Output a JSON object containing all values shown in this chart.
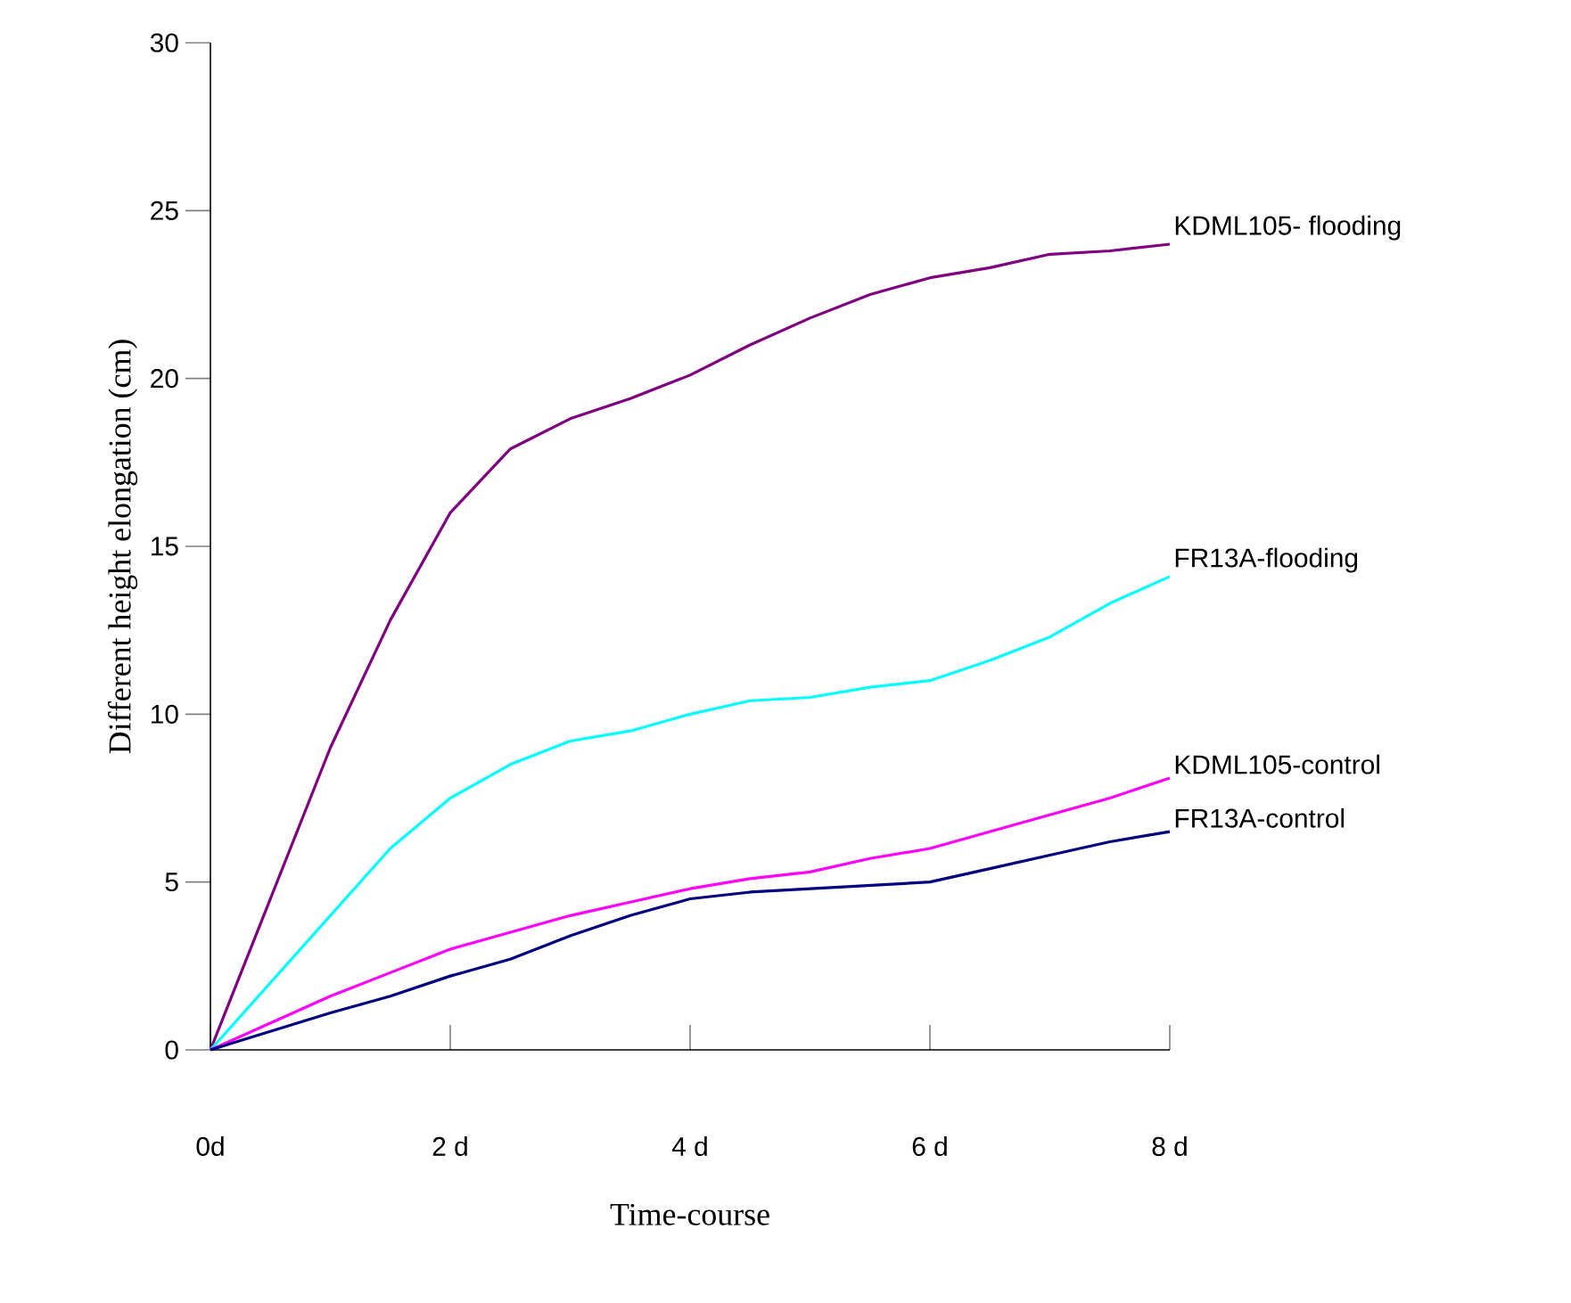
{
  "chart_data": {
    "type": "line",
    "xlabel": "Time-course",
    "ylabel": "Different height elongation (cm)",
    "x": [
      0,
      0.5,
      1,
      1.5,
      2,
      2.5,
      3,
      3.5,
      4,
      4.5,
      5,
      5.5,
      6,
      6.5,
      7,
      7.5,
      8
    ],
    "series": [
      {
        "name": "KDML105- flooding",
        "color": "#800080",
        "values": [
          0,
          4.5,
          9.0,
          12.8,
          16.0,
          17.9,
          18.8,
          19.4,
          20.1,
          21.0,
          21.8,
          22.5,
          23.0,
          23.3,
          23.7,
          23.8,
          24.0
        ]
      },
      {
        "name": "FR13A-flooding",
        "color": "#00ffff",
        "values": [
          0,
          2.0,
          4.0,
          6.0,
          7.5,
          8.5,
          9.2,
          9.5,
          10.0,
          10.4,
          10.5,
          10.8,
          11.0,
          11.6,
          12.3,
          13.3,
          14.1
        ]
      },
      {
        "name": "KDML105-control",
        "color": "#ff00ff",
        "values": [
          0,
          0.8,
          1.6,
          2.3,
          3.0,
          3.5,
          4.0,
          4.4,
          4.8,
          5.1,
          5.3,
          5.7,
          6.0,
          6.5,
          7.0,
          7.5,
          8.1
        ]
      },
      {
        "name": "FR13A-control",
        "color": "#000080",
        "values": [
          0,
          0.55,
          1.1,
          1.6,
          2.2,
          2.7,
          3.4,
          4.0,
          4.5,
          4.7,
          4.8,
          4.9,
          5.0,
          5.4,
          5.8,
          6.2,
          6.5
        ]
      }
    ],
    "xlim": [
      0,
      8
    ],
    "xticks": [
      {
        "value": 0,
        "label": "0d"
      },
      {
        "value": 2,
        "label": "2 d"
      },
      {
        "value": 4,
        "label": "4 d"
      },
      {
        "value": 6,
        "label": "6 d"
      },
      {
        "value": 8,
        "label": "8 d"
      }
    ],
    "ylim": [
      0,
      30
    ],
    "yticks": [
      0,
      5,
      10,
      15,
      20,
      25,
      30
    ]
  }
}
